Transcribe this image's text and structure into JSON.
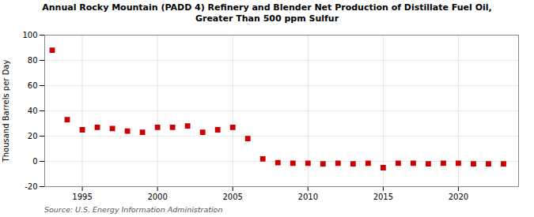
{
  "chart_data": {
    "type": "scatter",
    "title": "Annual Rocky Mountain (PADD 4) Refinery and Blender Net Production of Distillate Fuel Oil,\nGreater Than 500 ppm Sulfur",
    "ylabel": "Thousand Barrels per Day",
    "source": "Source: U.S. Energy Information Administration",
    "x": [
      1993,
      1994,
      1995,
      1996,
      1997,
      1998,
      1999,
      2000,
      2001,
      2002,
      2003,
      2004,
      2005,
      2006,
      2007,
      2008,
      2009,
      2010,
      2011,
      2012,
      2013,
      2014,
      2015,
      2016,
      2017,
      2018,
      2019,
      2020,
      2021,
      2022,
      2023
    ],
    "values": [
      88.0,
      33.0,
      25.0,
      27.0,
      26.0,
      24.0,
      23.0,
      27.0,
      27.0,
      28.0,
      23.0,
      25.0,
      27.0,
      18.0,
      2.0,
      -1.0,
      -1.5,
      -1.5,
      -2.0,
      -1.5,
      -2.0,
      -1.5,
      -5.0,
      -1.5,
      -1.5,
      -2.0,
      -1.5,
      -1.5,
      -2.0,
      -2.0,
      -2.0
    ],
    "color": "#cc0000",
    "marker": "square",
    "xlim": [
      1992.5,
      2024.0
    ],
    "xticks": [
      1995,
      2000,
      2005,
      2010,
      2015,
      2020
    ],
    "ylim": [
      -20,
      100
    ],
    "yticks": [
      -20,
      0,
      20,
      40,
      60,
      80,
      100
    ],
    "grid": true
  }
}
